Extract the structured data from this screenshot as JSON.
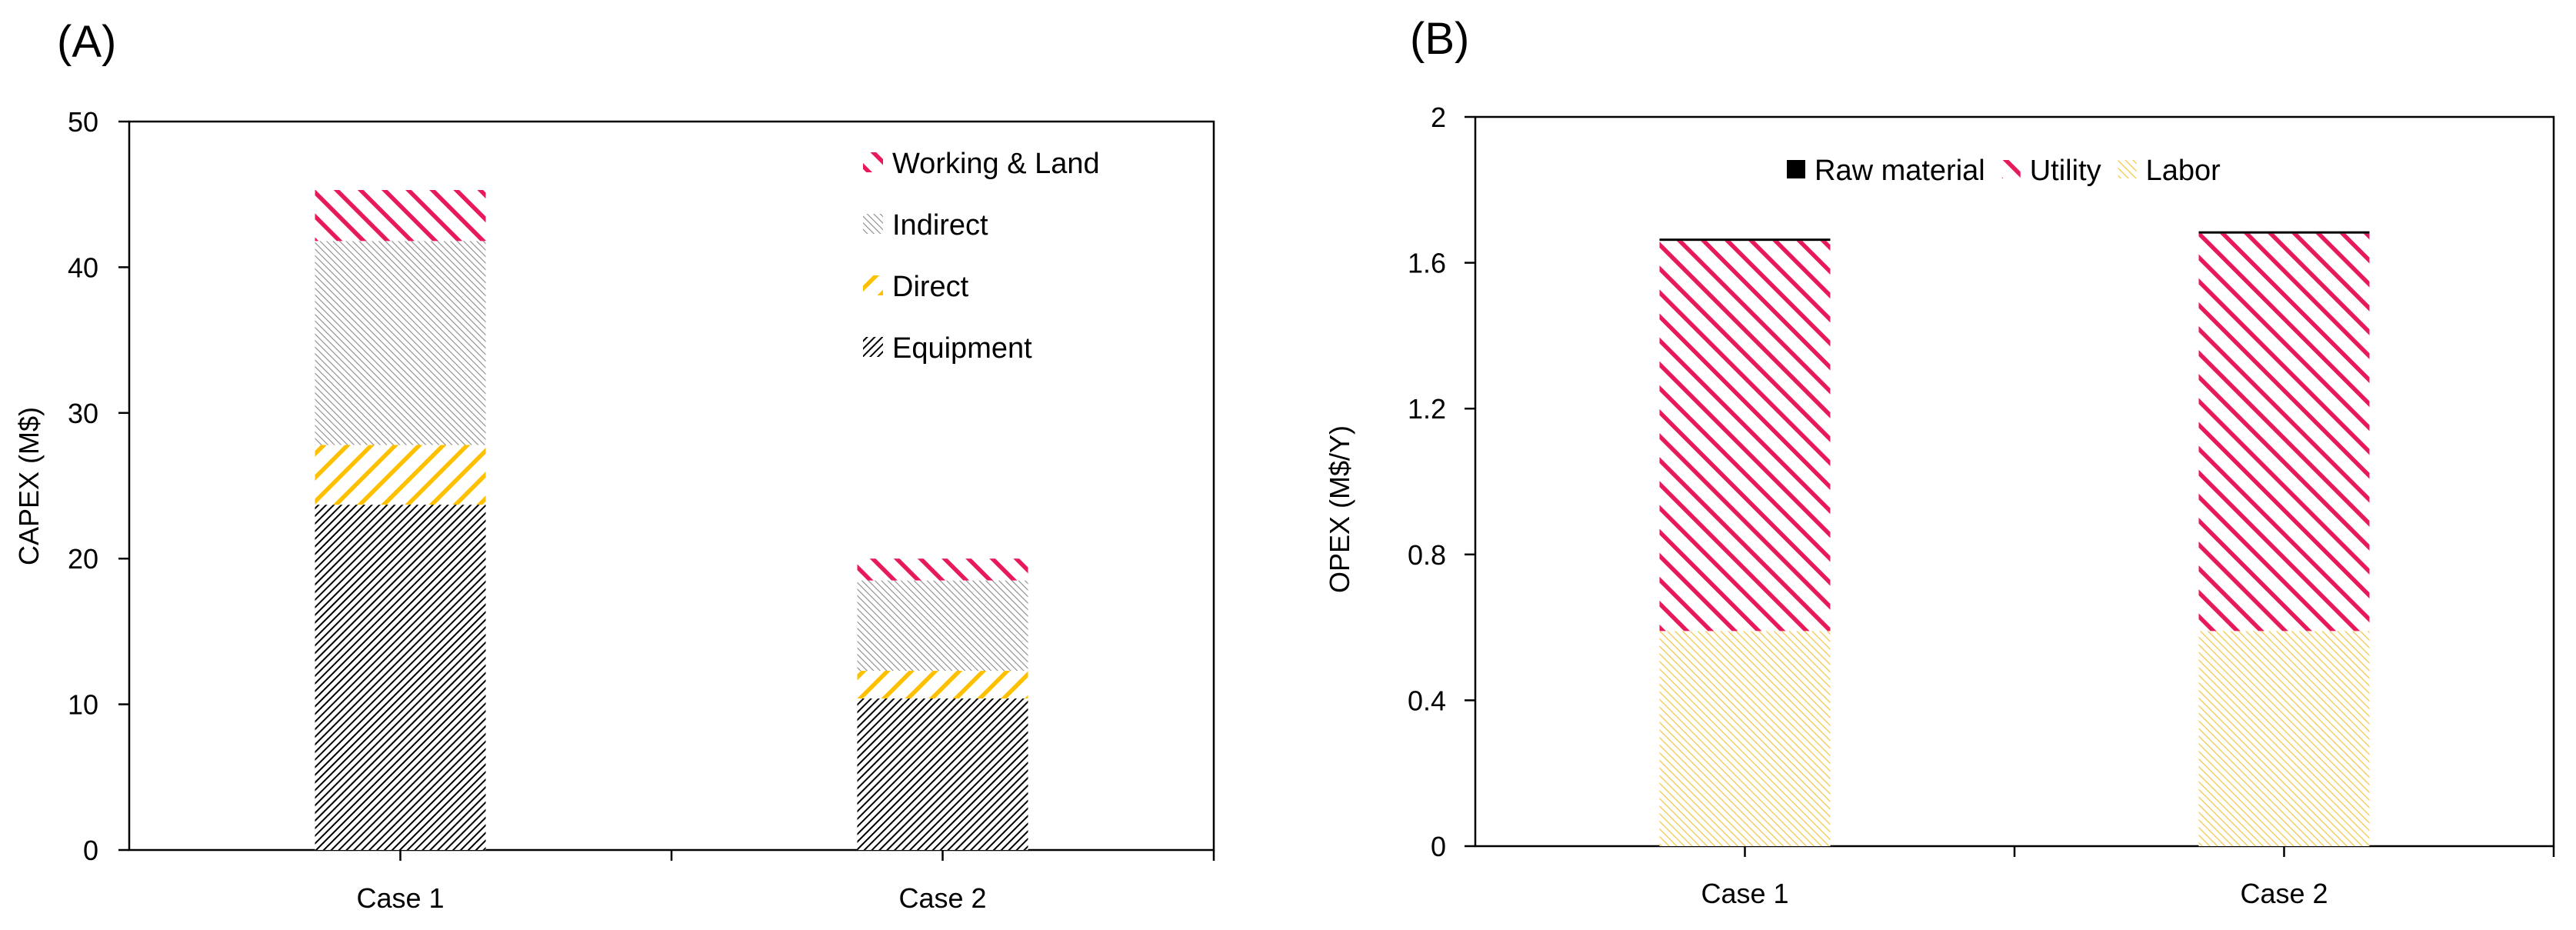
{
  "chart_data": [
    {
      "panel_label": "(A)",
      "type": "bar",
      "stacked": true,
      "categories": [
        "Case 1",
        "Case 2"
      ],
      "series": [
        {
          "name": "Equipment",
          "values": [
            23.7,
            10.4
          ],
          "pattern": "equipment",
          "color": "#000000"
        },
        {
          "name": "Direct",
          "values": [
            4.1,
            1.9
          ],
          "pattern": "direct",
          "color": "#FFC000"
        },
        {
          "name": "Indirect",
          "values": [
            14.0,
            6.2
          ],
          "pattern": "indirect",
          "color": "#808080"
        },
        {
          "name": "Working & Land",
          "values": [
            3.5,
            1.5
          ],
          "pattern": "working",
          "color": "#E8195A"
        }
      ],
      "legend_order": [
        "Working & Land",
        "Indirect",
        "Direct",
        "Equipment"
      ],
      "legend_position": "top-right",
      "xlabel": "",
      "ylabel": "CAPEX (M$)",
      "ylim": [
        0,
        50
      ],
      "yticks": [
        "0",
        "10",
        "20",
        "30",
        "40",
        "50"
      ],
      "grid": false
    },
    {
      "panel_label": "(B)",
      "type": "bar",
      "stacked": true,
      "categories": [
        "Case 1",
        "Case 2"
      ],
      "series": [
        {
          "name": "Labor",
          "values": [
            0.59,
            0.59
          ],
          "pattern": "labor",
          "color": "#FFC000"
        },
        {
          "name": "Utility",
          "values": [
            1.07,
            1.09
          ],
          "pattern": "utility",
          "color": "#E8195A"
        },
        {
          "name": "Raw material",
          "values": [
            0.005,
            0.005
          ],
          "pattern": "solid",
          "color": "#000000"
        }
      ],
      "legend_order": [
        "Raw material",
        "Utility",
        "Labor"
      ],
      "legend_position": "top-center",
      "xlabel": "",
      "ylabel": "OPEX (M$/Y)",
      "ylim": [
        0,
        2
      ],
      "yticks": [
        "0",
        "0.4",
        "0.8",
        "1.2",
        "1.6",
        "2"
      ],
      "grid": false
    }
  ]
}
